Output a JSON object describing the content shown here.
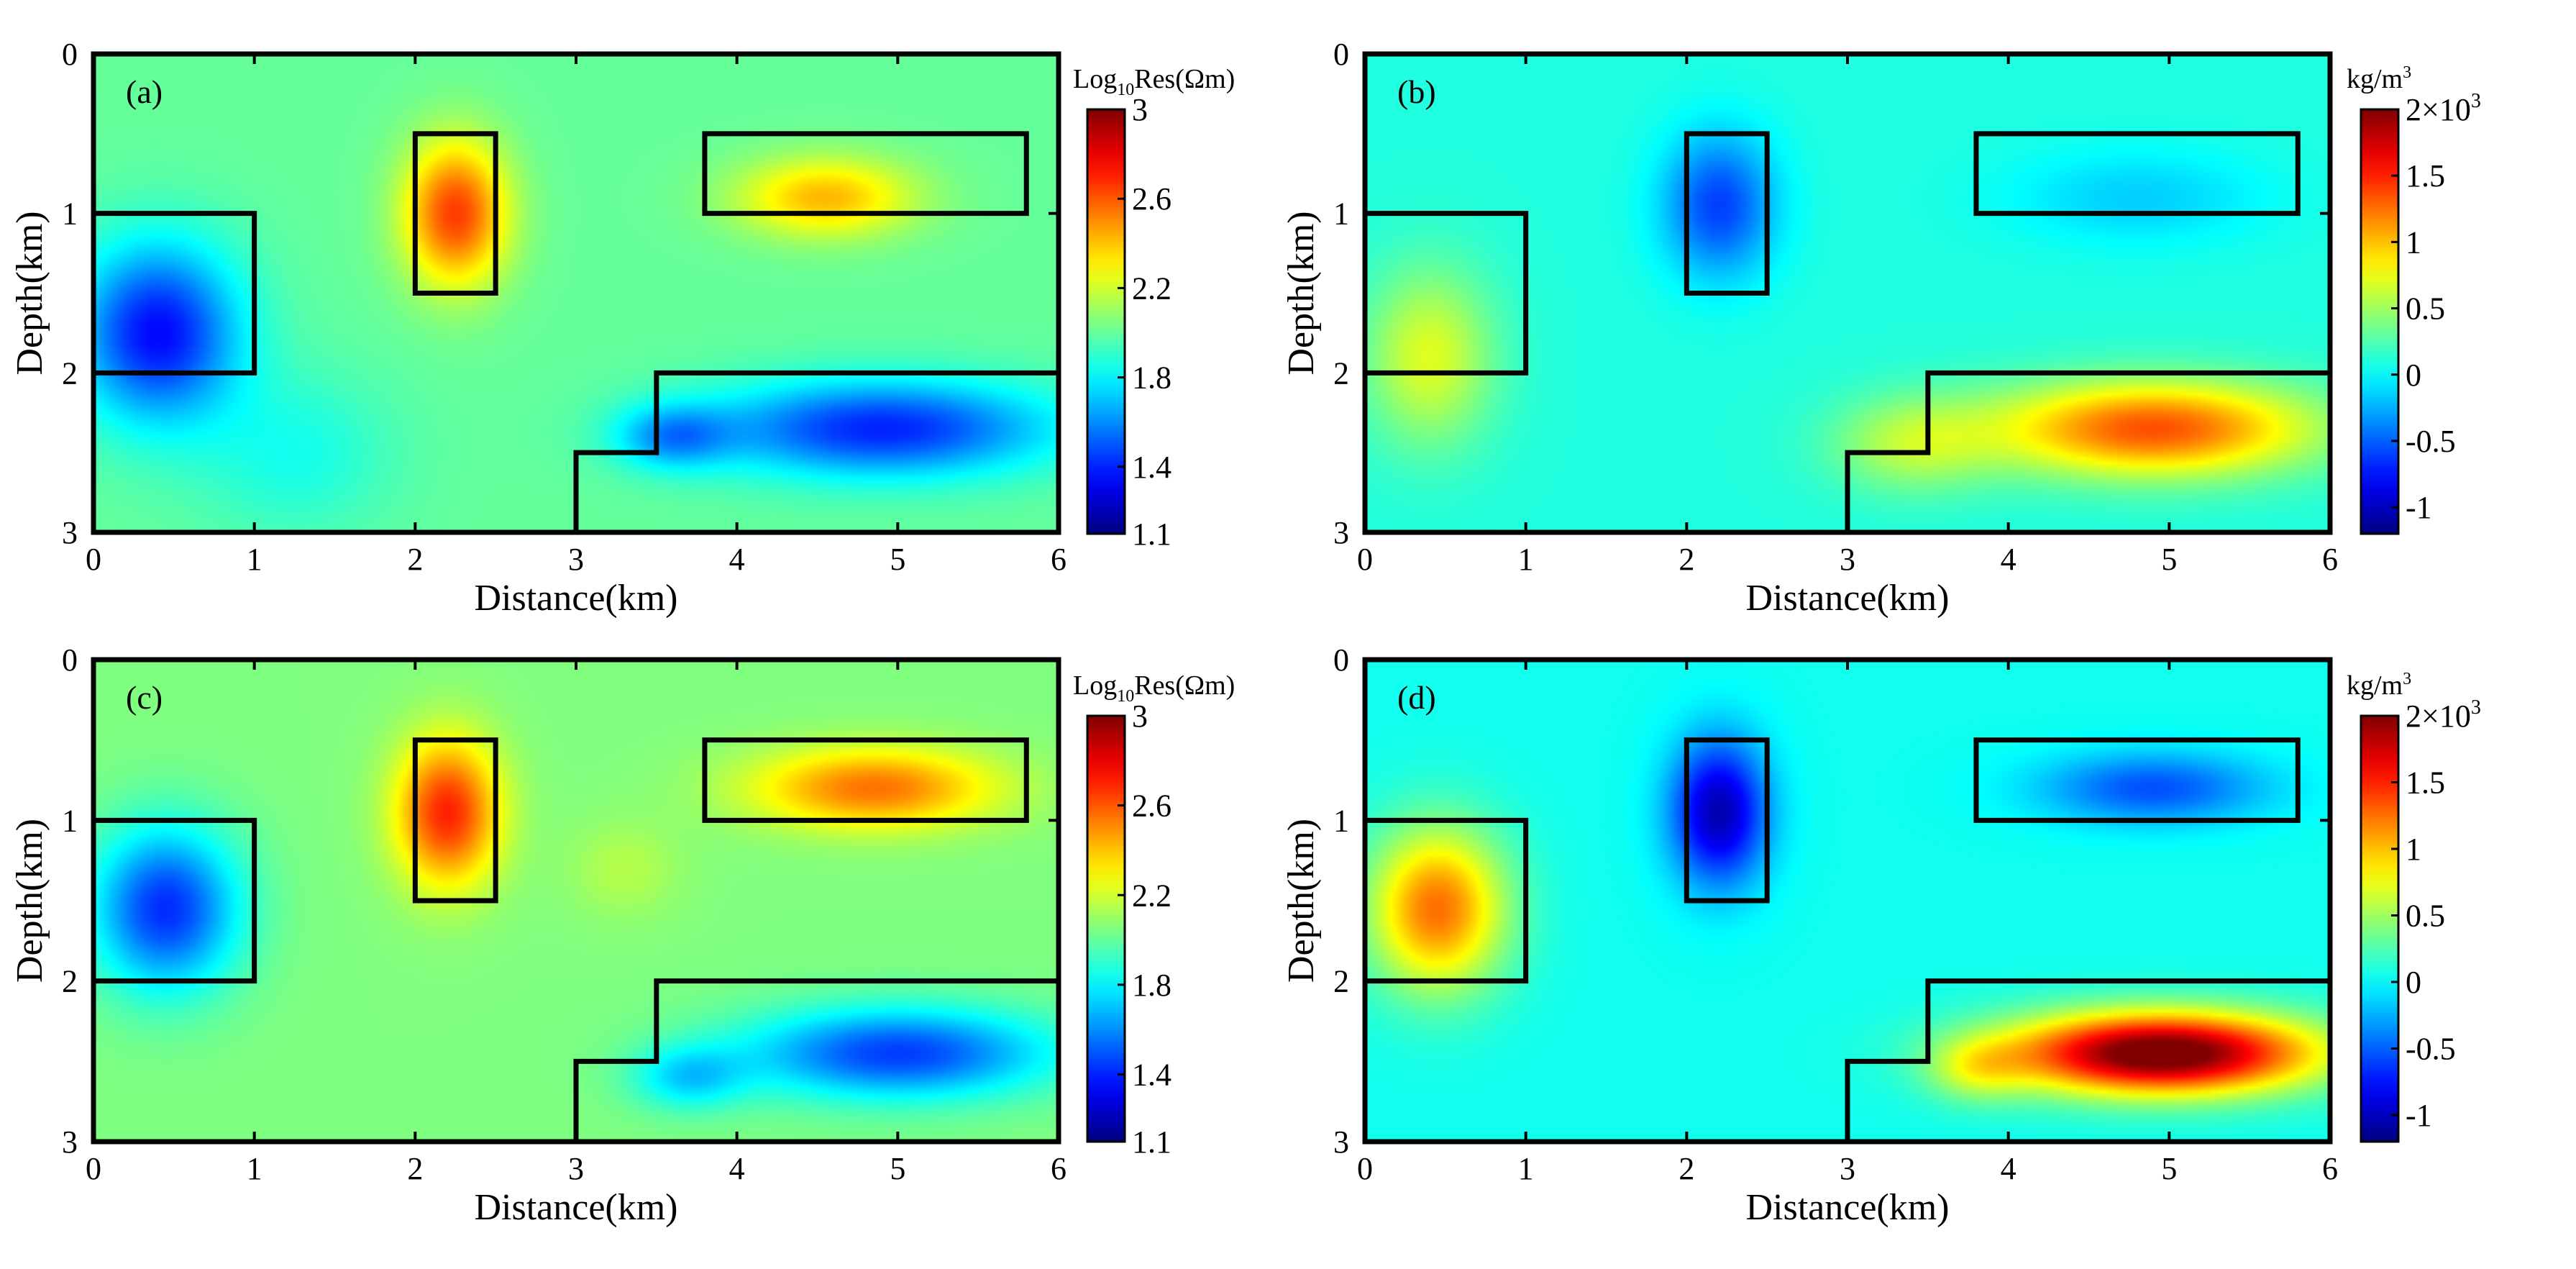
{
  "chart_data": [
    {
      "type": "heatmap",
      "panel_label": "(a)",
      "xlabel": "Distance(km)",
      "ylabel": "Depth(km)",
      "xlim": [
        0,
        6
      ],
      "ylim": [
        0,
        3
      ],
      "x_ticks": [
        "0",
        "1",
        "2",
        "3",
        "4",
        "5",
        "6"
      ],
      "y_ticks": [
        "0",
        "1",
        "2",
        "3"
      ],
      "colorbar": {
        "title_prefix": "Log",
        "title_sub": "10",
        "title_suffix": "Res(Ωm)",
        "range": [
          1.1,
          3
        ],
        "ticks": [
          "3",
          "2.6",
          "2.2",
          "1.8",
          "1.4",
          "1.1"
        ],
        "tick_values": [
          3,
          2.6,
          2.2,
          1.8,
          1.4,
          1.1
        ],
        "colormap": "jet"
      },
      "background": 2.0,
      "anomalies": [
        {
          "x": 0.4,
          "z": 1.75,
          "sx": 0.5,
          "sz": 0.55,
          "value": 1.35
        },
        {
          "x": 2.25,
          "z": 1.0,
          "sx": 0.32,
          "sz": 0.45,
          "value": 2.65
        },
        {
          "x": 4.55,
          "z": 0.9,
          "sx": 0.55,
          "sz": 0.25,
          "value": 2.42
        },
        {
          "x": 4.9,
          "z": 2.35,
          "sx": 1.05,
          "sz": 0.3,
          "value": 1.4
        },
        {
          "x": 3.6,
          "z": 2.4,
          "sx": 0.35,
          "sz": 0.2,
          "value": 1.65
        },
        {
          "x": 1.25,
          "z": 2.5,
          "sx": 0.6,
          "sz": 0.5,
          "value": 1.85
        }
      ],
      "model_bodies": [
        [
          [
            0,
            1
          ],
          [
            1,
            1
          ],
          [
            1,
            2
          ],
          [
            0,
            2
          ]
        ],
        [
          [
            2,
            0.5
          ],
          [
            2.5,
            0.5
          ],
          [
            2.5,
            1.5
          ],
          [
            2,
            1.5
          ]
        ],
        [
          [
            3.8,
            0.5
          ],
          [
            5.8,
            0.5
          ],
          [
            5.8,
            1
          ],
          [
            3.8,
            1
          ]
        ],
        [
          [
            3,
            3
          ],
          [
            3,
            2.5
          ],
          [
            3.5,
            2.5
          ],
          [
            3.5,
            2
          ],
          [
            6,
            2
          ]
        ]
      ]
    },
    {
      "type": "heatmap",
      "panel_label": "(b)",
      "xlabel": "Distance(km)",
      "ylabel": "Depth(km)",
      "xlim": [
        0,
        6
      ],
      "ylim": [
        0,
        3
      ],
      "x_ticks": [
        "0",
        "1",
        "2",
        "3",
        "4",
        "5",
        "6"
      ],
      "y_ticks": [
        "0",
        "1",
        "2",
        "3"
      ],
      "colorbar": {
        "title_prefix": "kg/m",
        "title_sup": "3",
        "range": [
          -1.2,
          2.0
        ],
        "ticks": [
          "2×10",
          "1.5",
          "1",
          "0.5",
          "0",
          "-0.5",
          "-1"
        ],
        "tick_values": [
          2,
          1.5,
          1,
          0.5,
          0,
          -0.5,
          -1
        ],
        "top_tick_sup": "3",
        "colormap": "jet"
      },
      "background": 0.1,
      "anomalies": [
        {
          "x": 0.4,
          "z": 1.9,
          "sx": 0.4,
          "sz": 0.55,
          "value": 0.7
        },
        {
          "x": 2.2,
          "z": 0.95,
          "sx": 0.35,
          "sz": 0.45,
          "value": -0.6
        },
        {
          "x": 4.8,
          "z": 0.9,
          "sx": 0.8,
          "sz": 0.3,
          "value": -0.15
        },
        {
          "x": 4.9,
          "z": 2.35,
          "sx": 1.0,
          "sz": 0.3,
          "value": 1.35
        },
        {
          "x": 3.4,
          "z": 2.45,
          "sx": 0.5,
          "sz": 0.3,
          "value": 0.55
        }
      ],
      "model_bodies": [
        [
          [
            0,
            1
          ],
          [
            1,
            1
          ],
          [
            1,
            2
          ],
          [
            0,
            2
          ]
        ],
        [
          [
            2,
            0.5
          ],
          [
            2.5,
            0.5
          ],
          [
            2.5,
            1.5
          ],
          [
            2,
            1.5
          ]
        ],
        [
          [
            3.8,
            0.5
          ],
          [
            5.8,
            0.5
          ],
          [
            5.8,
            1
          ],
          [
            3.8,
            1
          ]
        ],
        [
          [
            3,
            3
          ],
          [
            3,
            2.5
          ],
          [
            3.5,
            2.5
          ],
          [
            3.5,
            2
          ],
          [
            6,
            2
          ]
        ]
      ]
    },
    {
      "type": "heatmap",
      "panel_label": "(c)",
      "xlabel": "Distance(km)",
      "ylabel": "Depth(km)",
      "xlim": [
        0,
        6
      ],
      "ylim": [
        0,
        3
      ],
      "x_ticks": [
        "0",
        "1",
        "2",
        "3",
        "4",
        "5",
        "6"
      ],
      "y_ticks": [
        "0",
        "1",
        "2",
        "3"
      ],
      "colorbar": {
        "title_prefix": "Log",
        "title_sub": "10",
        "title_suffix": "Res(Ωm)",
        "range": [
          1.1,
          3
        ],
        "ticks": [
          "3",
          "2.6",
          "2.2",
          "1.8",
          "1.4",
          "1.1"
        ],
        "tick_values": [
          3,
          2.6,
          2.2,
          1.8,
          1.4,
          1.1
        ],
        "colormap": "jet"
      },
      "background": 2.05,
      "anomalies": [
        {
          "x": 0.45,
          "z": 1.55,
          "sx": 0.45,
          "sz": 0.5,
          "value": 1.42
        },
        {
          "x": 2.2,
          "z": 0.95,
          "sx": 0.32,
          "sz": 0.45,
          "value": 2.7
        },
        {
          "x": 4.85,
          "z": 0.8,
          "sx": 0.75,
          "sz": 0.25,
          "value": 2.55
        },
        {
          "x": 5.0,
          "z": 2.45,
          "sx": 0.95,
          "sz": 0.28,
          "value": 1.45
        },
        {
          "x": 3.7,
          "z": 2.6,
          "sx": 0.35,
          "sz": 0.2,
          "value": 1.75
        },
        {
          "x": 3.3,
          "z": 1.3,
          "sx": 0.35,
          "sz": 0.3,
          "value": 2.15
        }
      ],
      "model_bodies": [
        [
          [
            0,
            1
          ],
          [
            1,
            1
          ],
          [
            1,
            2
          ],
          [
            0,
            2
          ]
        ],
        [
          [
            2,
            0.5
          ],
          [
            2.5,
            0.5
          ],
          [
            2.5,
            1.5
          ],
          [
            2,
            1.5
          ]
        ],
        [
          [
            3.8,
            0.5
          ],
          [
            5.8,
            0.5
          ],
          [
            5.8,
            1
          ],
          [
            3.8,
            1
          ]
        ],
        [
          [
            3,
            3
          ],
          [
            3,
            2.5
          ],
          [
            3.5,
            2.5
          ],
          [
            3.5,
            2
          ],
          [
            6,
            2
          ]
        ]
      ]
    },
    {
      "type": "heatmap",
      "panel_label": "(d)",
      "xlabel": "Distance(km)",
      "ylabel": "Depth(km)",
      "xlim": [
        0,
        6
      ],
      "ylim": [
        0,
        3
      ],
      "x_ticks": [
        "0",
        "1",
        "2",
        "3",
        "4",
        "5",
        "6"
      ],
      "y_ticks": [
        "0",
        "1",
        "2",
        "3"
      ],
      "colorbar": {
        "title_prefix": "kg/m",
        "title_sup": "3",
        "range": [
          -1.2,
          2.0
        ],
        "ticks": [
          "2×10",
          "1.5",
          "1",
          "0.5",
          "0",
          "-0.5",
          "-1"
        ],
        "tick_values": [
          2,
          1.5,
          1,
          0.5,
          0,
          -0.5,
          -1
        ],
        "top_tick_sup": "3",
        "colormap": "jet"
      },
      "background": 0.05,
      "anomalies": [
        {
          "x": 0.45,
          "z": 1.55,
          "sx": 0.42,
          "sz": 0.5,
          "value": 1.25
        },
        {
          "x": 2.2,
          "z": 0.95,
          "sx": 0.3,
          "sz": 0.45,
          "value": -1.05
        },
        {
          "x": 4.9,
          "z": 0.8,
          "sx": 0.7,
          "sz": 0.22,
          "value": -0.55
        },
        {
          "x": 4.95,
          "z": 2.45,
          "sx": 0.95,
          "sz": 0.25,
          "value": 2.2
        },
        {
          "x": 3.8,
          "z": 2.55,
          "sx": 0.3,
          "sz": 0.2,
          "value": 0.5
        }
      ],
      "model_bodies": [
        [
          [
            0,
            1
          ],
          [
            1,
            1
          ],
          [
            1,
            2
          ],
          [
            0,
            2
          ]
        ],
        [
          [
            2,
            0.5
          ],
          [
            2.5,
            0.5
          ],
          [
            2.5,
            1.5
          ],
          [
            2,
            1.5
          ]
        ],
        [
          [
            3.8,
            0.5
          ],
          [
            5.8,
            0.5
          ],
          [
            5.8,
            1
          ],
          [
            3.8,
            1
          ]
        ],
        [
          [
            3,
            3
          ],
          [
            3,
            2.5
          ],
          [
            3.5,
            2.5
          ],
          [
            3.5,
            2
          ],
          [
            6,
            2
          ]
        ]
      ]
    }
  ]
}
